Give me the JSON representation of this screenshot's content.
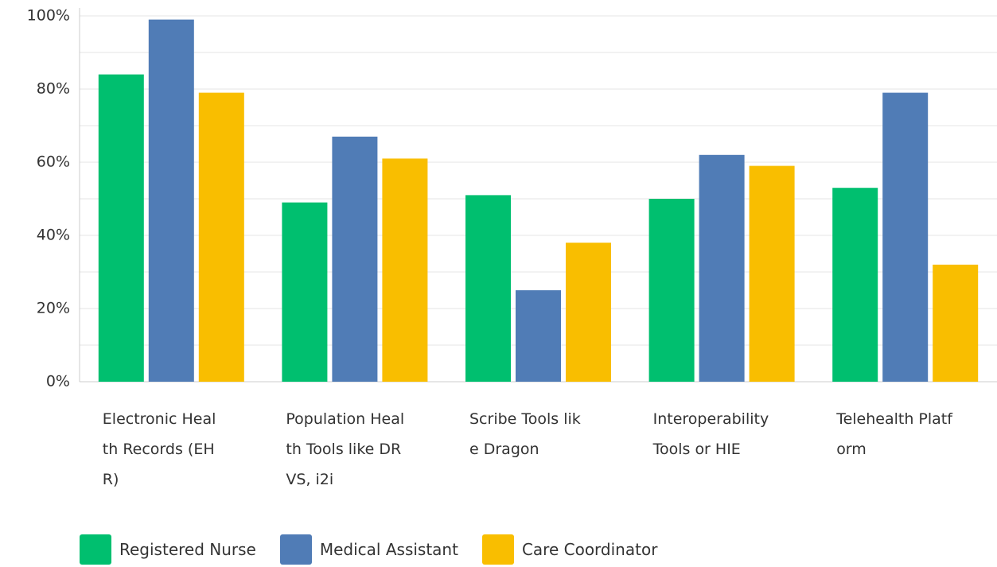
{
  "chart_data": {
    "type": "bar",
    "categories": [
      "Electronic Health Records (EHR)",
      "Population Health Tools like DRVS, i2i",
      "Scribe Tools like Dragon",
      "Interoperability Tools or HIE",
      "Telehealth Platform"
    ],
    "series": [
      {
        "name": "Registered Nurse",
        "color": "#00bf6f",
        "values": [
          84,
          49,
          51,
          50,
          53
        ]
      },
      {
        "name": "Medical Assistant",
        "color": "#507cb6",
        "values": [
          99,
          67,
          25,
          62,
          79
        ]
      },
      {
        "name": "Care Coordinator",
        "color": "#f9be00",
        "values": [
          79,
          61,
          38,
          59,
          32
        ]
      }
    ],
    "ylim": [
      0,
      100
    ],
    "yticks": [
      {
        "value": 0,
        "label": "0%"
      },
      {
        "value": 20,
        "label": "20%"
      },
      {
        "value": 40,
        "label": "40%"
      },
      {
        "value": 60,
        "label": "60%"
      },
      {
        "value": 80,
        "label": "80%"
      },
      {
        "value": 100,
        "label": "100%"
      }
    ],
    "yminor": [
      10,
      30,
      50,
      70,
      90
    ],
    "grid": true,
    "legend": "bottom"
  }
}
